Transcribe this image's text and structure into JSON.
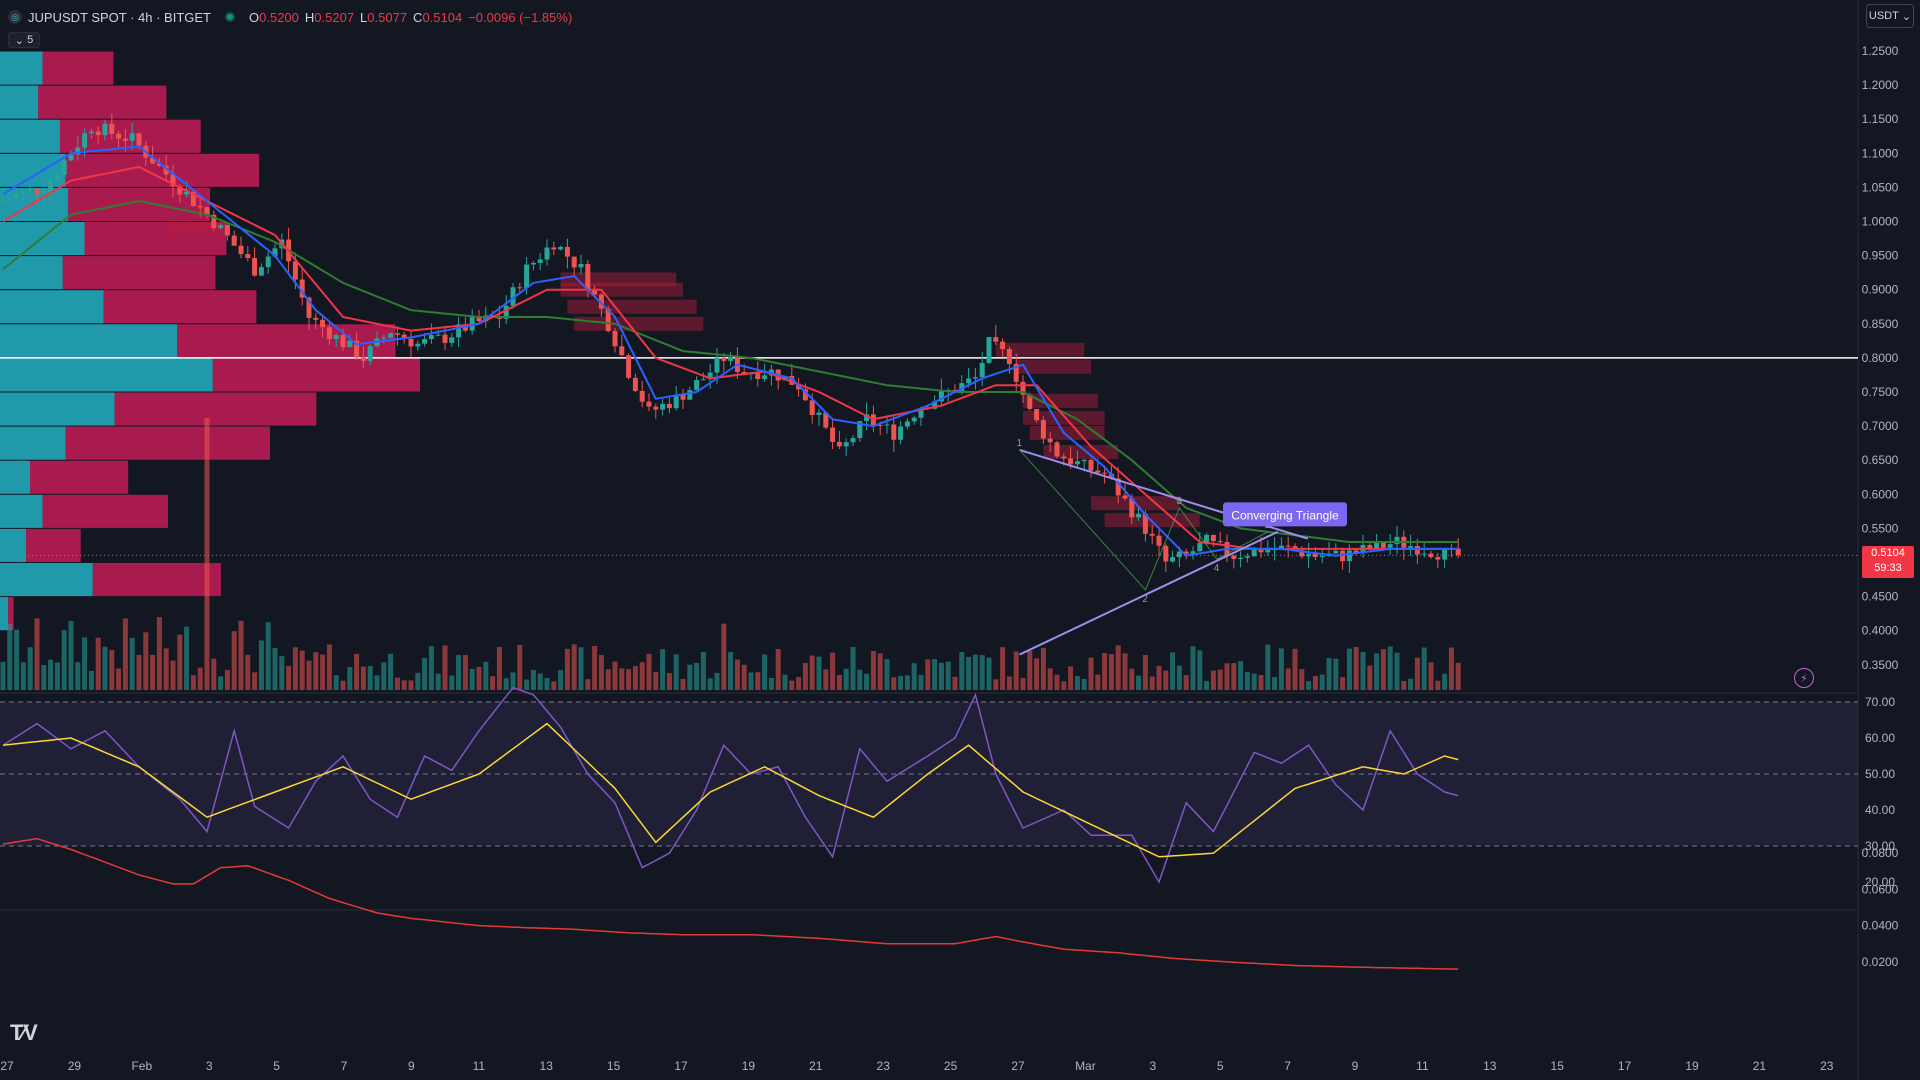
{
  "header": {
    "symbol_title": "JUPUSDT SPOT · 4h · BITGET",
    "logo_icon": "jupiter-coin-icon",
    "status_icon": "market-open-dot-icon",
    "ohlc": [
      {
        "label": "O",
        "value": "0.5200"
      },
      {
        "label": "H",
        "value": "0.5207"
      },
      {
        "label": "L",
        "value": "0.5077"
      },
      {
        "label": "C",
        "value": "0.5104"
      }
    ],
    "change": "−0.0096 (−1.85%)",
    "collapse_label": "5",
    "currency_select": "USDT"
  },
  "last_price": {
    "value": "0.5104",
    "countdown": "59:33"
  },
  "colors": {
    "background": "#131722",
    "up": "#26a69a",
    "down": "#ef5350",
    "ema_fast": "#2962ff",
    "ema_mid": "#f23645",
    "ema_slow": "#2e7d32",
    "rsi": "#7e57c2",
    "rsi_ma": "#fdd835",
    "pattern": "#9f8df0"
  },
  "chart_data": [
    {
      "type": "candlestick",
      "title": "JUPUSDT SPOT · 4h · BITGET",
      "x_tick_labels": [
        "27",
        "29",
        "Feb",
        "3",
        "5",
        "7",
        "9",
        "11",
        "13",
        "15",
        "17",
        "19",
        "21",
        "23",
        "25",
        "27",
        "Mar",
        "3",
        "5",
        "7",
        "9",
        "11",
        "13",
        "15",
        "17",
        "19",
        "21",
        "23"
      ],
      "ylim": [
        0.32,
        1.28
      ],
      "y_ticks": [
        "1.2500",
        "1.2000",
        "1.1500",
        "1.1000",
        "1.0500",
        "1.0000",
        "0.9500",
        "0.9000",
        "0.8500",
        "0.8000",
        "0.7500",
        "0.7000",
        "0.6500",
        "0.6000",
        "0.5500",
        "0.5000",
        "0.4500",
        "0.4000",
        "0.3500"
      ],
      "close_path": [
        [
          0,
          1.03
        ],
        [
          7,
          1.05
        ],
        [
          14,
          1.14
        ],
        [
          20,
          1.12
        ],
        [
          26,
          1.06
        ],
        [
          32,
          1.0
        ],
        [
          38,
          0.93
        ],
        [
          42,
          0.97
        ],
        [
          46,
          0.86
        ],
        [
          50,
          0.83
        ],
        [
          54,
          0.8
        ],
        [
          58,
          0.84
        ],
        [
          62,
          0.82
        ],
        [
          66,
          0.83
        ],
        [
          70,
          0.85
        ],
        [
          74,
          0.86
        ],
        [
          78,
          0.93
        ],
        [
          82,
          0.97
        ],
        [
          86,
          0.93
        ],
        [
          90,
          0.85
        ],
        [
          93,
          0.78
        ],
        [
          96,
          0.72
        ],
        [
          100,
          0.74
        ],
        [
          104,
          0.77
        ],
        [
          107,
          0.8
        ],
        [
          110,
          0.78
        ],
        [
          114,
          0.78
        ],
        [
          118,
          0.76
        ],
        [
          121,
          0.71
        ],
        [
          124,
          0.66
        ],
        [
          128,
          0.71
        ],
        [
          132,
          0.69
        ],
        [
          136,
          0.73
        ],
        [
          140,
          0.75
        ],
        [
          144,
          0.77
        ],
        [
          146,
          0.82
        ],
        [
          149,
          0.8
        ],
        [
          152,
          0.72
        ],
        [
          156,
          0.66
        ],
        [
          160,
          0.64
        ],
        [
          163,
          0.63
        ],
        [
          166,
          0.59
        ],
        [
          169,
          0.55
        ],
        [
          172,
          0.5
        ],
        [
          175,
          0.51
        ],
        [
          178,
          0.53
        ],
        [
          182,
          0.51
        ],
        [
          186,
          0.52
        ],
        [
          190,
          0.52
        ],
        [
          194,
          0.51
        ],
        [
          198,
          0.51
        ],
        [
          202,
          0.52
        ],
        [
          206,
          0.53
        ],
        [
          210,
          0.52
        ],
        [
          214,
          0.51
        ]
      ],
      "ema_fast_path": [
        [
          0,
          1.04
        ],
        [
          10,
          1.1
        ],
        [
          20,
          1.11
        ],
        [
          30,
          1.03
        ],
        [
          40,
          0.95
        ],
        [
          46,
          0.87
        ],
        [
          52,
          0.82
        ],
        [
          60,
          0.83
        ],
        [
          70,
          0.85
        ],
        [
          78,
          0.91
        ],
        [
          84,
          0.92
        ],
        [
          90,
          0.86
        ],
        [
          96,
          0.74
        ],
        [
          102,
          0.75
        ],
        [
          108,
          0.79
        ],
        [
          116,
          0.77
        ],
        [
          122,
          0.71
        ],
        [
          128,
          0.7
        ],
        [
          136,
          0.73
        ],
        [
          144,
          0.77
        ],
        [
          150,
          0.79
        ],
        [
          156,
          0.69
        ],
        [
          162,
          0.64
        ],
        [
          168,
          0.57
        ],
        [
          174,
          0.51
        ],
        [
          180,
          0.52
        ],
        [
          188,
          0.52
        ],
        [
          196,
          0.51
        ],
        [
          204,
          0.52
        ],
        [
          214,
          0.52
        ]
      ],
      "ema_mid_path": [
        [
          0,
          1.0
        ],
        [
          10,
          1.06
        ],
        [
          20,
          1.08
        ],
        [
          30,
          1.03
        ],
        [
          40,
          0.98
        ],
        [
          50,
          0.86
        ],
        [
          60,
          0.84
        ],
        [
          70,
          0.85
        ],
        [
          80,
          0.9
        ],
        [
          88,
          0.9
        ],
        [
          96,
          0.8
        ],
        [
          104,
          0.77
        ],
        [
          112,
          0.78
        ],
        [
          120,
          0.75
        ],
        [
          128,
          0.71
        ],
        [
          138,
          0.73
        ],
        [
          146,
          0.76
        ],
        [
          152,
          0.76
        ],
        [
          160,
          0.67
        ],
        [
          168,
          0.6
        ],
        [
          176,
          0.53
        ],
        [
          184,
          0.52
        ],
        [
          192,
          0.52
        ],
        [
          200,
          0.52
        ],
        [
          208,
          0.52
        ],
        [
          214,
          0.52
        ]
      ],
      "ema_slow_path": [
        [
          0,
          0.93
        ],
        [
          10,
          1.01
        ],
        [
          20,
          1.03
        ],
        [
          30,
          1.01
        ],
        [
          40,
          0.97
        ],
        [
          50,
          0.91
        ],
        [
          60,
          0.87
        ],
        [
          70,
          0.86
        ],
        [
          80,
          0.86
        ],
        [
          90,
          0.85
        ],
        [
          100,
          0.81
        ],
        [
          110,
          0.8
        ],
        [
          120,
          0.78
        ],
        [
          130,
          0.76
        ],
        [
          140,
          0.75
        ],
        [
          150,
          0.75
        ],
        [
          158,
          0.71
        ],
        [
          166,
          0.65
        ],
        [
          174,
          0.58
        ],
        [
          182,
          0.55
        ],
        [
          190,
          0.54
        ],
        [
          198,
          0.53
        ],
        [
          206,
          0.53
        ],
        [
          214,
          0.53
        ]
      ],
      "horizontal_lines": [
        {
          "price": 0.8,
          "color": "#ffffff"
        }
      ],
      "pattern": {
        "label": "Converging Triangle",
        "points": [
          {
            "label": "1",
            "bar": 149.5,
            "price": 0.665
          },
          {
            "label": "2",
            "bar": 168,
            "price": 0.46
          },
          {
            "label": "3",
            "bar": 173,
            "price": 0.58
          },
          {
            "label": "4",
            "bar": 178.5,
            "price": 0.505
          },
          {
            "label": "5",
            "bar": 186,
            "price": 0.545
          }
        ]
      },
      "volume_profile": {
        "rows": [
          {
            "price": 1.225,
            "up": 0.78,
            "down": 1.3
          },
          {
            "price": 1.175,
            "up": 0.7,
            "down": 2.35
          },
          {
            "price": 1.125,
            "up": 1.1,
            "down": 2.58
          },
          {
            "price": 1.075,
            "up": 1.2,
            "down": 3.55
          },
          {
            "price": 1.025,
            "up": 1.25,
            "down": 2.6
          },
          {
            "price": 0.975,
            "up": 1.55,
            "down": 2.6
          },
          {
            "price": 0.925,
            "up": 1.15,
            "down": 2.8
          },
          {
            "price": 0.875,
            "up": 1.9,
            "down": 2.8
          },
          {
            "price": 0.825,
            "up": 3.25,
            "down": 4.0
          },
          {
            "price": 0.775,
            "up": 3.9,
            "down": 3.8
          },
          {
            "price": 0.725,
            "up": 2.1,
            "down": 3.7
          },
          {
            "price": 0.675,
            "up": 1.2,
            "down": 3.75
          },
          {
            "price": 0.625,
            "up": 0.55,
            "down": 1.8
          },
          {
            "price": 0.575,
            "up": 0.78,
            "down": 2.3
          },
          {
            "price": 0.525,
            "up": 0.48,
            "down": 1.0
          },
          {
            "price": 0.475,
            "up": 1.7,
            "down": 2.35
          },
          {
            "price": 0.425,
            "up": 0.15,
            "down": 0.1
          }
        ],
        "max": 7.7
      },
      "supply_zones": [
        {
          "bar0": 24,
          "bar1": 32,
          "price": 0.99
        },
        {
          "bar0": 82,
          "bar1": 99,
          "price": 0.915
        },
        {
          "bar0": 82,
          "bar1": 100,
          "price": 0.9
        },
        {
          "bar0": 83,
          "bar1": 102,
          "price": 0.875
        },
        {
          "bar0": 84,
          "bar1": 103,
          "price": 0.85
        },
        {
          "bar0": 146,
          "bar1": 159,
          "price": 0.812
        },
        {
          "bar0": 149,
          "bar1": 160,
          "price": 0.787
        },
        {
          "bar0": 150,
          "bar1": 161,
          "price": 0.737
        },
        {
          "bar0": 150,
          "bar1": 162,
          "price": 0.712
        },
        {
          "bar0": 151,
          "bar1": 162,
          "price": 0.69
        },
        {
          "bar0": 153,
          "bar1": 164,
          "price": 0.662
        },
        {
          "bar0": 160,
          "bar1": 173,
          "price": 0.587
        },
        {
          "bar0": 162,
          "bar1": 176,
          "price": 0.562
        }
      ]
    },
    {
      "type": "bar",
      "title": "Volume",
      "ylim": [
        0,
        1
      ],
      "spikes": [
        {
          "bar": 30,
          "value": 1.0
        },
        {
          "bar": 106,
          "value": 0.39
        },
        {
          "bar": 214,
          "value": 0.16
        }
      ]
    },
    {
      "type": "line",
      "title": "RSI",
      "ylim": [
        15,
        75
      ],
      "y_ticks": [
        "70.00",
        "60.00",
        "50.00",
        "40.00",
        "30.00",
        "20.00"
      ],
      "levels": [
        70,
        50,
        30
      ],
      "rsi_path": [
        [
          0,
          58
        ],
        [
          5,
          64
        ],
        [
          10,
          57
        ],
        [
          15,
          62
        ],
        [
          20,
          52
        ],
        [
          26,
          43
        ],
        [
          30,
          34
        ],
        [
          34,
          62
        ],
        [
          37,
          41
        ],
        [
          42,
          35
        ],
        [
          46,
          48
        ],
        [
          50,
          55
        ],
        [
          54,
          43
        ],
        [
          58,
          38
        ],
        [
          62,
          55
        ],
        [
          66,
          51
        ],
        [
          70,
          62
        ],
        [
          75,
          74
        ],
        [
          78,
          72
        ],
        [
          82,
          63
        ],
        [
          86,
          50
        ],
        [
          90,
          42
        ],
        [
          94,
          24
        ],
        [
          98,
          28
        ],
        [
          102,
          40
        ],
        [
          106,
          58
        ],
        [
          110,
          50
        ],
        [
          114,
          52
        ],
        [
          118,
          38
        ],
        [
          122,
          27
        ],
        [
          126,
          57
        ],
        [
          130,
          48
        ],
        [
          136,
          55
        ],
        [
          140,
          60
        ],
        [
          143,
          72
        ],
        [
          146,
          50
        ],
        [
          150,
          35
        ],
        [
          156,
          40
        ],
        [
          160,
          33
        ],
        [
          166,
          33
        ],
        [
          170,
          20
        ],
        [
          174,
          42
        ],
        [
          178,
          34
        ],
        [
          184,
          56
        ],
        [
          188,
          53
        ],
        [
          192,
          58
        ],
        [
          196,
          47
        ],
        [
          200,
          40
        ],
        [
          204,
          62
        ],
        [
          208,
          50
        ],
        [
          212,
          45
        ],
        [
          214,
          44
        ]
      ],
      "rsi_ma_path": [
        [
          0,
          58
        ],
        [
          10,
          60
        ],
        [
          20,
          52
        ],
        [
          30,
          38
        ],
        [
          40,
          45
        ],
        [
          50,
          52
        ],
        [
          60,
          43
        ],
        [
          70,
          50
        ],
        [
          80,
          64
        ],
        [
          90,
          46
        ],
        [
          96,
          31
        ],
        [
          104,
          45
        ],
        [
          112,
          52
        ],
        [
          120,
          44
        ],
        [
          128,
          38
        ],
        [
          136,
          50
        ],
        [
          142,
          58
        ],
        [
          150,
          45
        ],
        [
          160,
          36
        ],
        [
          170,
          27
        ],
        [
          178,
          28
        ],
        [
          190,
          46
        ],
        [
          200,
          52
        ],
        [
          206,
          50
        ],
        [
          212,
          55
        ],
        [
          214,
          54
        ]
      ]
    },
    {
      "type": "line",
      "title": "Volatility",
      "ylim": [
        0.01,
        0.09
      ],
      "y_ticks": [
        "0.0800",
        "0.0600",
        "0.0400",
        "0.0200"
      ],
      "path": [
        [
          0,
          0.085
        ],
        [
          5,
          0.088
        ],
        [
          10,
          0.082
        ],
        [
          15,
          0.075
        ],
        [
          20,
          0.068
        ],
        [
          25,
          0.063
        ],
        [
          28,
          0.063
        ],
        [
          32,
          0.072
        ],
        [
          36,
          0.073
        ],
        [
          42,
          0.065
        ],
        [
          48,
          0.055
        ],
        [
          55,
          0.047
        ],
        [
          60,
          0.044
        ],
        [
          65,
          0.042
        ],
        [
          70,
          0.04
        ],
        [
          76,
          0.039
        ],
        [
          84,
          0.038
        ],
        [
          92,
          0.036
        ],
        [
          100,
          0.035
        ],
        [
          110,
          0.035
        ],
        [
          120,
          0.033
        ],
        [
          130,
          0.03
        ],
        [
          140,
          0.03
        ],
        [
          146,
          0.034
        ],
        [
          150,
          0.031
        ],
        [
          156,
          0.027
        ],
        [
          164,
          0.025
        ],
        [
          172,
          0.022
        ],
        [
          180,
          0.02
        ],
        [
          190,
          0.018
        ],
        [
          200,
          0.017
        ],
        [
          214,
          0.016
        ]
      ]
    }
  ]
}
